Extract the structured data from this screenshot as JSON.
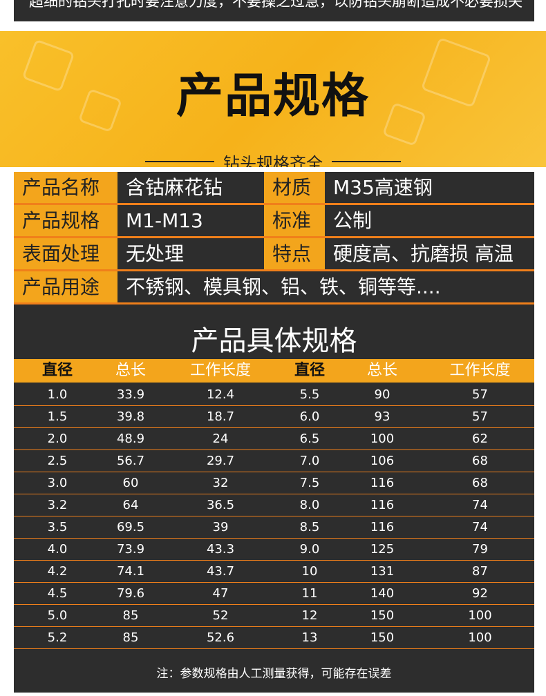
{
  "top_strip": {
    "text": "超细的钻头打孔时要注意力度，不要操之过急，以防钻头崩断造成不必要损失"
  },
  "banner": {
    "title": "产品规格",
    "subtitle": "钻头规格齐全"
  },
  "info": [
    [
      {
        "label": "产品名称",
        "value": "含钴麻花钻"
      },
      {
        "label": "材质",
        "value": "M35高速钢"
      }
    ],
    [
      {
        "label": "产品规格",
        "value": "M1-M13"
      },
      {
        "label": "标准",
        "value": "公制"
      }
    ],
    [
      {
        "label": "表面处理",
        "value": "无处理"
      },
      {
        "label": "特点",
        "value": "硬度高、抗磨损 高温"
      }
    ],
    [
      {
        "label": "产品用途",
        "value": "不锈钢、模具钢、铝、铁、铜等等...."
      }
    ]
  ],
  "spec": {
    "title": "产品具体规格",
    "headers": [
      "直径",
      "总长",
      "工作长度",
      "直径",
      "总长",
      "工作长度"
    ],
    "rows": [
      [
        "1.0",
        "33.9",
        "12.4",
        "5.5",
        "90",
        "57"
      ],
      [
        "1.5",
        "39.8",
        "18.7",
        "6.0",
        "93",
        "57"
      ],
      [
        "2.0",
        "48.9",
        "24",
        "6.5",
        "100",
        "62"
      ],
      [
        "2.5",
        "56.7",
        "29.7",
        "7.0",
        "106",
        "68"
      ],
      [
        "3.0",
        "60",
        "32",
        "7.5",
        "116",
        "68"
      ],
      [
        "3.2",
        "64",
        "36.5",
        "8.0",
        "116",
        "74"
      ],
      [
        "3.5",
        "69.5",
        "39",
        "8.5",
        "116",
        "74"
      ],
      [
        "4.0",
        "73.9",
        "43.3",
        "9.0",
        "125",
        "79"
      ],
      [
        "4.2",
        "74.1",
        "43.7",
        "10",
        "131",
        "87"
      ],
      [
        "4.5",
        "79.6",
        "47",
        "11",
        "140",
        "92"
      ],
      [
        "5.0",
        "85",
        "52",
        "12",
        "150",
        "100"
      ],
      [
        "5.2",
        "85",
        "52.6",
        "13",
        "150",
        "100"
      ]
    ],
    "note": "注：参数规格由人工测量获得，可能存在误差"
  },
  "colors": {
    "accent": "#f3a51c",
    "divider": "#f07f1a",
    "panel": "#2d2d2d"
  }
}
